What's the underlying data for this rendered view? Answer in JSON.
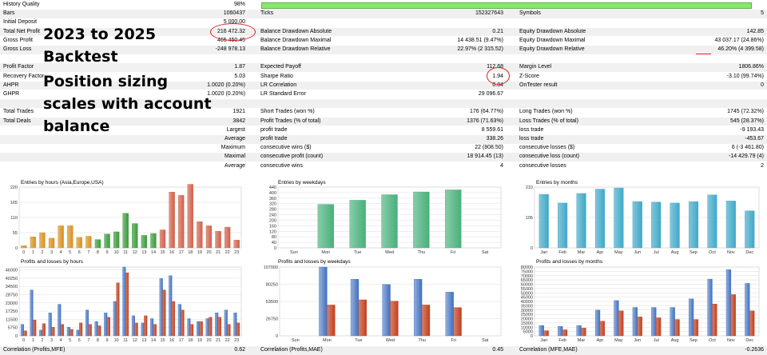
{
  "stats_rows": [
    {
      "alt": false,
      "c": [
        "History Quality",
        "98%",
        "",
        "",
        "",
        ""
      ],
      "bar": true
    },
    {
      "alt": true,
      "c": [
        "Bars",
        "1060437",
        "Ticks",
        "152327643",
        "Symbols",
        "5"
      ]
    },
    {
      "alt": false,
      "c": [
        "Initial Deposit",
        "5 000.00",
        "",
        "",
        "",
        ""
      ]
    },
    {
      "alt": true,
      "c": [
        "Total Net Profit",
        "216 472.32",
        "Balance Drawdown Absolute",
        "0.21",
        "Equity Drawdown Absolute",
        "142.85"
      ]
    },
    {
      "alt": false,
      "c": [
        "Gross Profit",
        "465 450.45",
        "Balance Drawdown Maximal",
        "14 438.51 (9.47%)",
        "Equity Drawdown Maximal",
        "43 037.17 (24.86%)"
      ]
    },
    {
      "alt": true,
      "c": [
        "Gross Loss",
        "-248 978.13",
        "Balance Drawdown Relative",
        "22.97% (2 315.52)",
        "Equity Drawdown Relative",
        "46.20% (4 399.58)"
      ]
    },
    {
      "alt": false,
      "c": [
        "",
        "",
        "",
        "",
        "",
        ""
      ]
    },
    {
      "alt": true,
      "c": [
        "Profit Factor",
        "1.87",
        "Expected Payoff",
        "112.68",
        "Margin Level",
        "1806.86%"
      ]
    },
    {
      "alt": false,
      "c": [
        "Recovery Factor",
        "5.03",
        "Sharpe Ratio",
        "1.94",
        "Z-Score",
        "-3.10 (99.74%)"
      ]
    },
    {
      "alt": true,
      "c": [
        "AHPR",
        "1.0020 (0.20%)",
        "LR Correlation",
        "0.84",
        "OnTester result",
        "0"
      ]
    },
    {
      "alt": false,
      "c": [
        "GHPR",
        "1.0020 (0.20%)",
        "LR Standard Error",
        "29 096.67",
        "",
        ""
      ]
    },
    {
      "alt": true,
      "c": [
        "",
        "",
        "",
        "",
        "",
        ""
      ]
    },
    {
      "alt": false,
      "c": [
        "Total Trades",
        "1921",
        "Short Trades (won %)",
        "176 (64.77%)",
        "Long Trades (won %)",
        "1745 (72.32%)"
      ]
    },
    {
      "alt": true,
      "c": [
        "Total Deals",
        "3842",
        "Profit Trades (% of total)",
        "1376 (71.63%)",
        "Loss Trades (% of total)",
        "545 (28.37%)"
      ]
    },
    {
      "alt": false,
      "c": [
        "",
        "Largest",
        "profit trade",
        "8 559.61",
        "loss trade",
        "-9 193.43"
      ]
    },
    {
      "alt": true,
      "c": [
        "",
        "Average",
        "profit trade",
        "338.26",
        "loss trade",
        "-453.67"
      ]
    },
    {
      "alt": false,
      "c": [
        "",
        "Maximum",
        "consecutive wins ($)",
        "22 (808.50)",
        "consecutive losses ($)",
        "6 (-3 461.80)"
      ]
    },
    {
      "alt": true,
      "c": [
        "",
        "Maximal",
        "consecutive profit (count)",
        "18 914.45 (13)",
        "consecutive loss (count)",
        "-14 429.79 (4)"
      ]
    },
    {
      "alt": false,
      "c": [
        "",
        "Average",
        "consecutive wins",
        "4",
        "consecutive losses",
        "2"
      ]
    }
  ],
  "history_quality_fill": 0.98,
  "annotation_lines": [
    "2023 to 2025",
    "Backtest",
    "Position sizing",
    "scales with account",
    "balance"
  ],
  "colors": {
    "row_alt": "#f0f0f0",
    "quality_bar": "#88e870",
    "annotation_red": "#e02020",
    "hours_orange": "#d89020",
    "hours_green": "#3a9a3a",
    "hours_red": "#d0604a",
    "weekdays_green": "#48b07a",
    "months_blue": "#40a8c8",
    "profit_blue": "#4070c0",
    "loss_red": "#c04020"
  },
  "charts": {
    "entries_hours": {
      "title": "Entries by hours (Asia,Europe,USA)",
      "categories": [
        "0",
        "1",
        "2",
        "3",
        "4",
        "5",
        "6",
        "7",
        "8",
        "9",
        "10",
        "11",
        "12",
        "13",
        "14",
        "15",
        "16",
        "17",
        "18",
        "19",
        "20",
        "21",
        "22",
        "23"
      ],
      "values": [
        8,
        40,
        55,
        35,
        80,
        80,
        38,
        42,
        30,
        50,
        58,
        125,
        88,
        45,
        52,
        65,
        202,
        190,
        230,
        95,
        80,
        60,
        75,
        28
      ],
      "y_ticks": [
        "220",
        "165",
        "110",
        "55",
        "0"
      ],
      "ylim": [
        0,
        220
      ]
    },
    "entries_weekdays": {
      "title": "Entries by weekdays",
      "categories": [
        "Sun",
        "Mon",
        "Tue",
        "Wed",
        "Thu",
        "Fri",
        "Sat"
      ],
      "values": [
        0,
        315,
        345,
        385,
        405,
        420,
        0
      ],
      "y_ticks": [
        "440",
        "400",
        "360",
        "320",
        "280",
        "240",
        "200",
        "160",
        "120",
        "80",
        "40",
        "0"
      ],
      "ylim": [
        0,
        440
      ]
    },
    "entries_months": {
      "title": "Entries by months",
      "categories": [
        "Jan",
        "Feb",
        "Mar",
        "Apr",
        "May",
        "Jun",
        "Jul",
        "Aug",
        "Sep",
        "Oct",
        "Nov",
        "Dec"
      ],
      "values": [
        185,
        155,
        188,
        203,
        207,
        160,
        158,
        155,
        160,
        183,
        162,
        128
      ],
      "y_ticks": [
        "210",
        "105",
        "0"
      ],
      "ylim": [
        0,
        210
      ]
    },
    "pl_hours": {
      "title": "Profits and losses by hours",
      "categories": [
        "0",
        "1",
        "2",
        "3",
        "4",
        "5",
        "6",
        "7",
        "8",
        "9",
        "10",
        "11",
        "12",
        "13",
        "14",
        "15",
        "16",
        "17",
        "18",
        "19",
        "20",
        "21",
        "22",
        "23"
      ],
      "profits": [
        8000,
        32000,
        4000,
        16000,
        22000,
        6000,
        4000,
        18000,
        10000,
        16000,
        24000,
        48000,
        14000,
        9000,
        12000,
        40000,
        42000,
        22000,
        12000,
        10000,
        12000,
        16000,
        18000,
        16000
      ],
      "losses": [
        3500,
        11000,
        8500,
        6000,
        8000,
        4500,
        9000,
        8000,
        7000,
        13000,
        37000,
        44000,
        9000,
        14000,
        8000,
        32000,
        24000,
        18000,
        8000,
        10000,
        13000,
        13000,
        8000,
        9000
      ],
      "y_ticks": [
        "46000",
        "40250",
        "34500",
        "28750",
        "23000",
        "17250",
        "11500",
        "5750",
        "0"
      ],
      "ylim": [
        0,
        48000
      ]
    },
    "pl_weekdays": {
      "title": "Profits and losses by weekdays",
      "categories": [
        "Sun",
        "Mon",
        "Tue",
        "Wed",
        "Thu",
        "Fri",
        "Sat"
      ],
      "profits": [
        0,
        107000,
        88000,
        80000,
        88000,
        68000,
        0
      ],
      "losses": [
        0,
        48000,
        56000,
        54000,
        48000,
        44000,
        0
      ],
      "y_ticks": [
        "107000",
        "80250",
        "53500",
        "26750",
        "0"
      ],
      "ylim": [
        0,
        107000
      ]
    },
    "pl_months": {
      "title": "Profits and losses by months",
      "categories": [
        "Jan",
        "Feb",
        "Mar",
        "Apr",
        "May",
        "Jun",
        "Jul",
        "Aug",
        "Sep",
        "Oct",
        "Nov",
        "Dec"
      ],
      "profits": [
        12000,
        11000,
        12000,
        30000,
        41000,
        33000,
        33000,
        33000,
        43000,
        66000,
        77000,
        61000
      ],
      "losses": [
        6000,
        7000,
        9000,
        17000,
        29000,
        22000,
        21000,
        19000,
        19000,
        37000,
        48000,
        29000
      ],
      "y_ticks": [
        "80000",
        "75000",
        "70000",
        "65000",
        "60000",
        "55000",
        "50000",
        "45000",
        "40000",
        "35000",
        "30000",
        "25000",
        "20000",
        "15000",
        "10000",
        "5000",
        "0"
      ],
      "ylim": [
        0,
        80000
      ]
    }
  },
  "bottom": {
    "c1_label": "Correlation (Profits,MFE)",
    "c1_value": "0.62",
    "c2_label": "Correlation (Profits,MAE)",
    "c2_value": "0.45",
    "c3_label": "Correlation (MFE,MAE)",
    "c3_value": "-0.2636"
  }
}
